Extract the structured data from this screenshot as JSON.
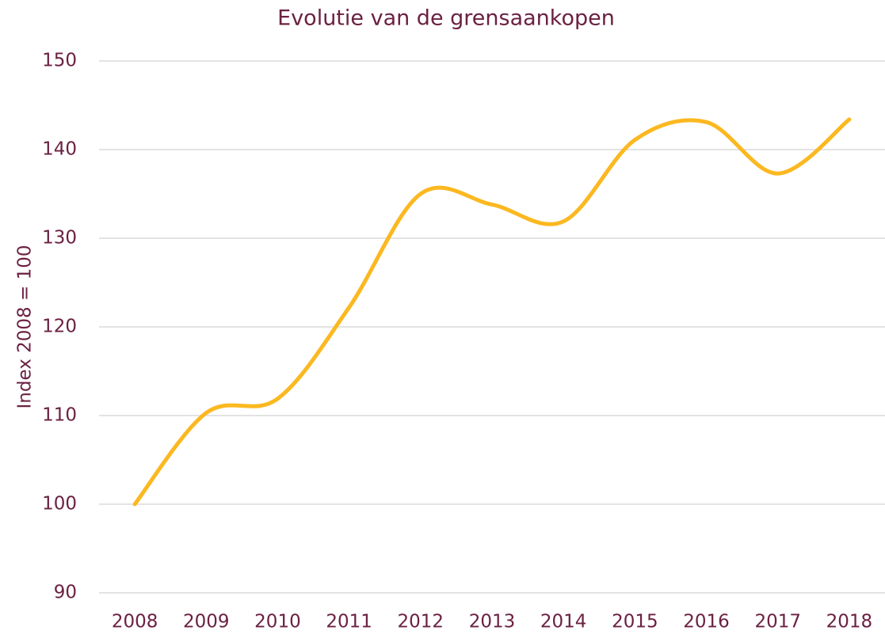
{
  "chart_data": {
    "type": "line",
    "title": "Evolutie van de grensaankopen",
    "y_label": "Index 2008 = 100",
    "categories": [
      "2008",
      "2009",
      "2010",
      "2011",
      "2012",
      "2013",
      "2014",
      "2015",
      "2016",
      "2017",
      "2018"
    ],
    "series": [
      {
        "name": "Index",
        "color": "#fbb820",
        "values": [
          100,
          110.3,
          111.9,
          122.2,
          135,
          133.8,
          131.9,
          141.1,
          143.1,
          137.3,
          143.4
        ]
      }
    ],
    "ylim": [
      90,
      150
    ],
    "yticks": [
      90,
      100,
      110,
      120,
      130,
      140,
      150
    ],
    "grid": true,
    "smooth": true
  }
}
